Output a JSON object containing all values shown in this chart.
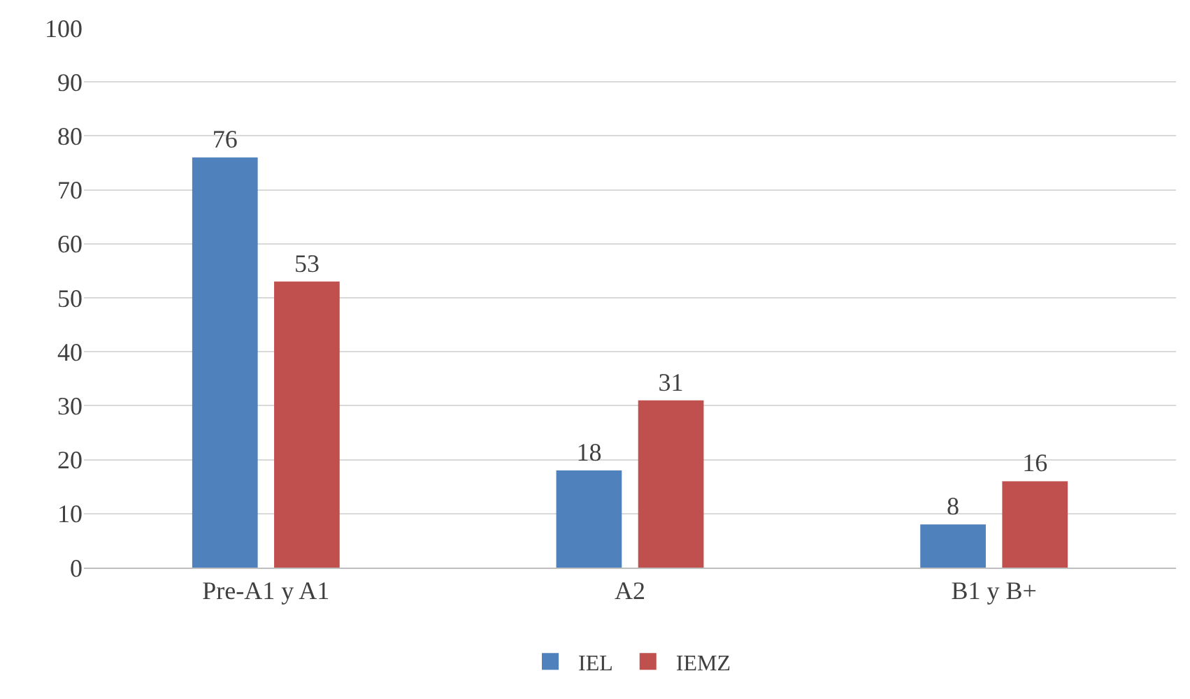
{
  "chart_data": {
    "type": "bar",
    "categories": [
      "Pre-A1 y A1",
      "A2",
      "B1 y B+"
    ],
    "series": [
      {
        "name": "IEL",
        "color": "#4f81bd",
        "values": [
          76,
          18,
          8
        ]
      },
      {
        "name": "IEMZ",
        "color": "#c0504d",
        "values": [
          53,
          31,
          16
        ]
      }
    ],
    "ylim": [
      0,
      100
    ],
    "yticks": [
      0,
      10,
      20,
      30,
      40,
      50,
      60,
      70,
      80,
      90,
      100
    ],
    "grid": "y",
    "legend": "bottom",
    "data_labels": true
  }
}
